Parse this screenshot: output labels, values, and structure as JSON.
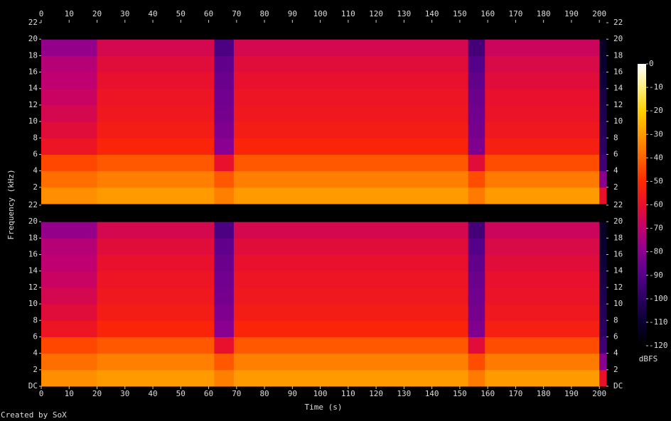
{
  "chart_data": {
    "type": "spectrogram",
    "x_label": "Time (s)",
    "y_label": "Frequency (kHz)",
    "credit": "Created by SoX",
    "xlim": [
      0,
      202.5
    ],
    "xticks": [
      0,
      10,
      20,
      30,
      40,
      50,
      60,
      70,
      80,
      90,
      100,
      110,
      120,
      130,
      140,
      150,
      160,
      170,
      180,
      190,
      200
    ],
    "time_bins": [
      0,
      20,
      62,
      69,
      153,
      159,
      200,
      202.5
    ],
    "freq_bins": [
      0,
      2,
      4,
      6,
      8,
      10,
      12,
      14,
      16,
      18,
      20,
      22
    ],
    "channels": [
      {
        "ylim": [
          0,
          22
        ],
        "yticks": [
          2,
          4,
          6,
          8,
          10,
          12,
          14,
          16,
          18,
          20,
          22
        ],
        "z": [
          [
            -32,
            -38,
            -45,
            -58,
            -62,
            -65,
            -68,
            -70,
            -72,
            -78,
            -120
          ],
          [
            -30,
            -35,
            -42,
            -52,
            -55,
            -57,
            -58,
            -60,
            -62,
            -65,
            -120
          ],
          [
            -35,
            -42,
            -60,
            -80,
            -82,
            -84,
            -85,
            -86,
            -88,
            -92,
            -120
          ],
          [
            -30,
            -35,
            -42,
            -52,
            -55,
            -57,
            -58,
            -60,
            -62,
            -65,
            -120
          ],
          [
            -36,
            -44,
            -62,
            -82,
            -84,
            -85,
            -86,
            -88,
            -90,
            -94,
            -120
          ],
          [
            -30,
            -36,
            -44,
            -54,
            -57,
            -59,
            -60,
            -62,
            -64,
            -67,
            -120
          ],
          [
            -60,
            -80,
            -95,
            -100,
            -102,
            -104,
            -106,
            -108,
            -110,
            -112,
            -120
          ]
        ]
      },
      {
        "ylim": [
          0,
          22
        ],
        "yticks": [
          {
            "value": 0,
            "label": "DC"
          },
          2,
          4,
          6,
          8,
          10,
          12,
          14,
          16,
          18,
          20,
          22
        ],
        "z": [
          [
            -32,
            -38,
            -45,
            -58,
            -62,
            -65,
            -68,
            -70,
            -72,
            -78,
            -120
          ],
          [
            -30,
            -35,
            -42,
            -52,
            -55,
            -57,
            -58,
            -60,
            -62,
            -65,
            -120
          ],
          [
            -35,
            -42,
            -60,
            -80,
            -82,
            -84,
            -85,
            -86,
            -88,
            -92,
            -120
          ],
          [
            -30,
            -35,
            -42,
            -52,
            -55,
            -57,
            -58,
            -60,
            -62,
            -65,
            -120
          ],
          [
            -36,
            -44,
            -62,
            -82,
            -84,
            -85,
            -86,
            -88,
            -90,
            -94,
            -120
          ],
          [
            -30,
            -36,
            -44,
            -54,
            -57,
            -59,
            -60,
            -62,
            -64,
            -67,
            -120
          ],
          [
            -60,
            -80,
            -95,
            -100,
            -102,
            -104,
            -106,
            -108,
            -110,
            -112,
            -120
          ]
        ]
      }
    ],
    "colorbar": {
      "label": "dBFS",
      "lim": [
        -120,
        0
      ],
      "ticks": [
        0,
        -10,
        -20,
        -30,
        -40,
        -50,
        -60,
        -70,
        -80,
        -90,
        -100,
        -110,
        -120
      ],
      "colors": [
        "#000000",
        "#0a0030",
        "#2a0060",
        "#55008a",
        "#8a0090",
        "#c00070",
        "#e8102c",
        "#ff2a00",
        "#ff6400",
        "#ff9a00",
        "#ffd000",
        "#fff080",
        "#ffffff"
      ]
    }
  }
}
